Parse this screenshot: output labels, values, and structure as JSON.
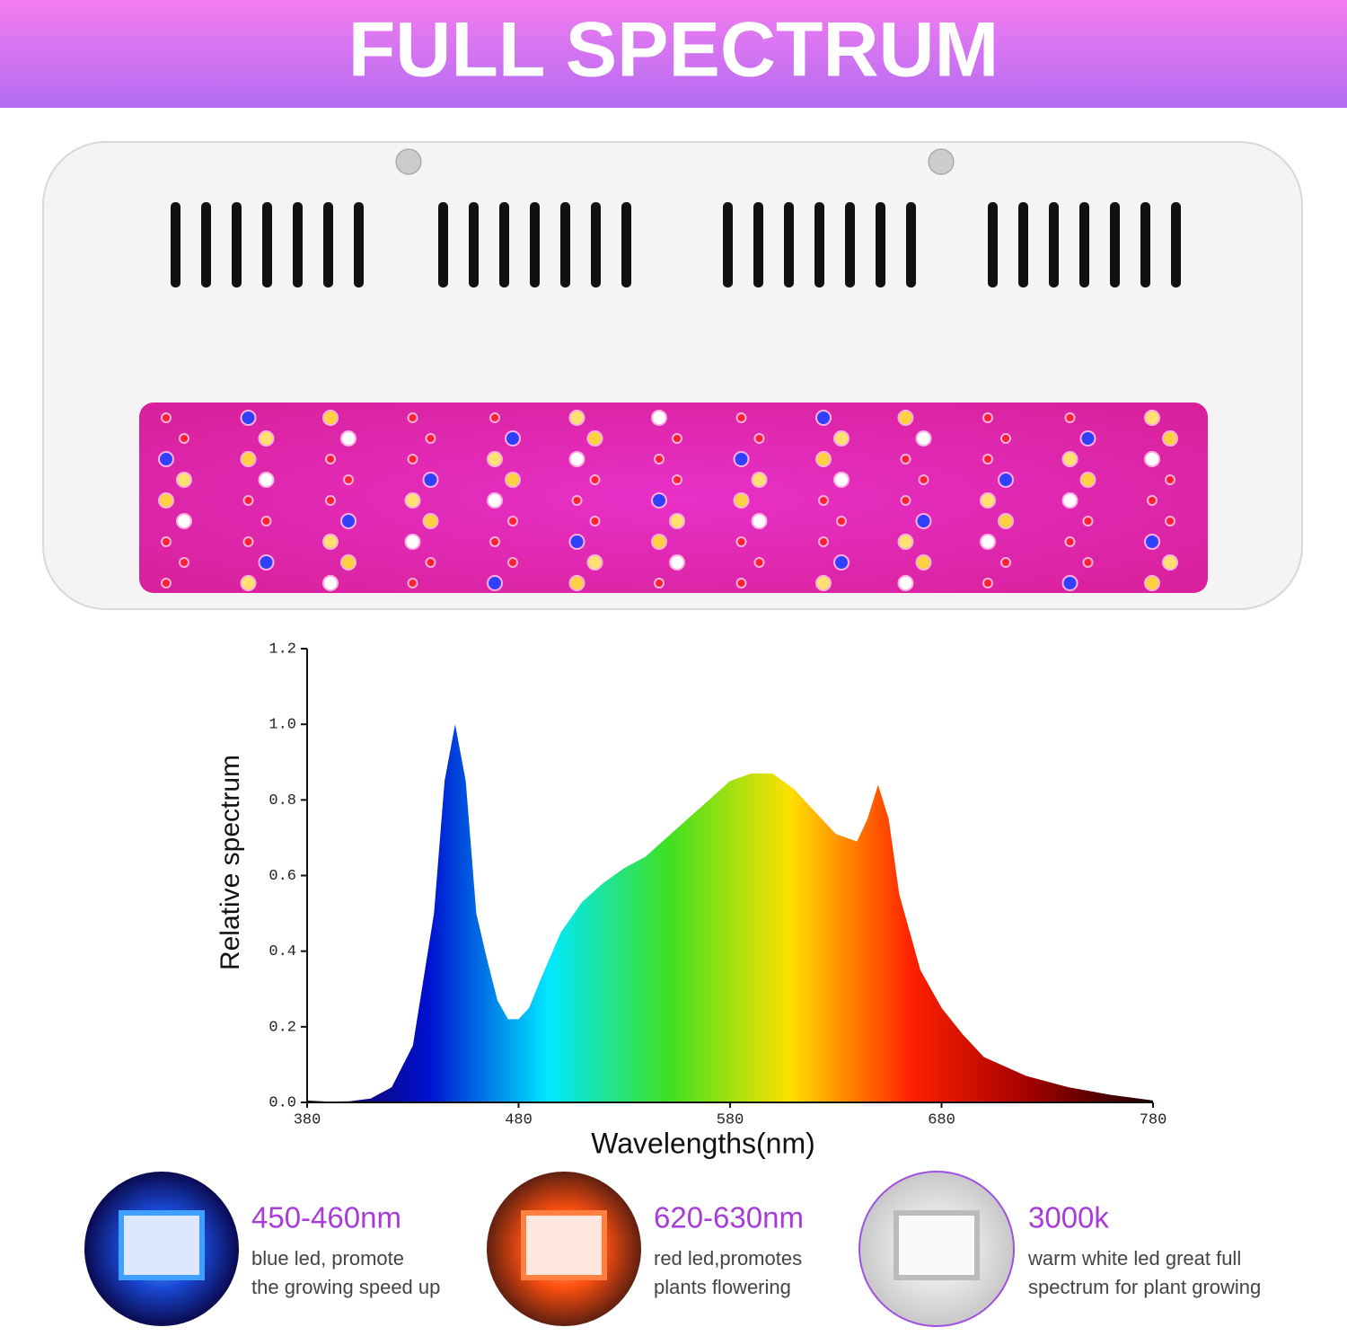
{
  "header": {
    "title": "FULL SPECTRUM"
  },
  "chart_data": {
    "type": "area",
    "x_label": "Wavelengths(nm)",
    "y_label": "Relative spectrum",
    "x": [
      380,
      390,
      400,
      410,
      420,
      430,
      440,
      445,
      450,
      455,
      460,
      465,
      470,
      475,
      480,
      485,
      490,
      500,
      510,
      520,
      530,
      540,
      550,
      560,
      570,
      580,
      590,
      600,
      610,
      620,
      630,
      640,
      645,
      650,
      655,
      660,
      670,
      680,
      690,
      700,
      720,
      740,
      760,
      780
    ],
    "values": [
      0.005,
      0.002,
      0.003,
      0.01,
      0.04,
      0.15,
      0.5,
      0.85,
      1.0,
      0.85,
      0.5,
      0.38,
      0.27,
      0.22,
      0.22,
      0.25,
      0.32,
      0.45,
      0.53,
      0.58,
      0.62,
      0.65,
      0.7,
      0.75,
      0.8,
      0.85,
      0.87,
      0.87,
      0.83,
      0.77,
      0.71,
      0.69,
      0.75,
      0.84,
      0.75,
      0.55,
      0.35,
      0.25,
      0.18,
      0.12,
      0.07,
      0.04,
      0.02,
      0.005
    ],
    "gradient": [
      "#1a0030",
      "#0010d0",
      "#00e8ff",
      "#40e020",
      "#ffe000",
      "#ff2000",
      "#a00000",
      "#1a0000"
    ],
    "xlim": [
      380,
      780
    ],
    "xticks": [
      380,
      480,
      580,
      680,
      780
    ],
    "ylim": [
      0,
      1.2
    ],
    "yticks": [
      {
        "value": 0,
        "label": "0.0"
      },
      0.2,
      0.4,
      0.6,
      0.8,
      {
        "value": 1,
        "label": "1.0"
      },
      1.2
    ]
  },
  "features": [
    {
      "title": "450-460nm",
      "lines": [
        "blue led, promote",
        "the growing speed up"
      ]
    },
    {
      "title": "620-630nm",
      "lines": [
        "red led,promotes",
        "plants flowering"
      ]
    },
    {
      "title": "3000k",
      "lines": [
        "warm white led great full",
        "spectrum for plant growing"
      ]
    }
  ]
}
